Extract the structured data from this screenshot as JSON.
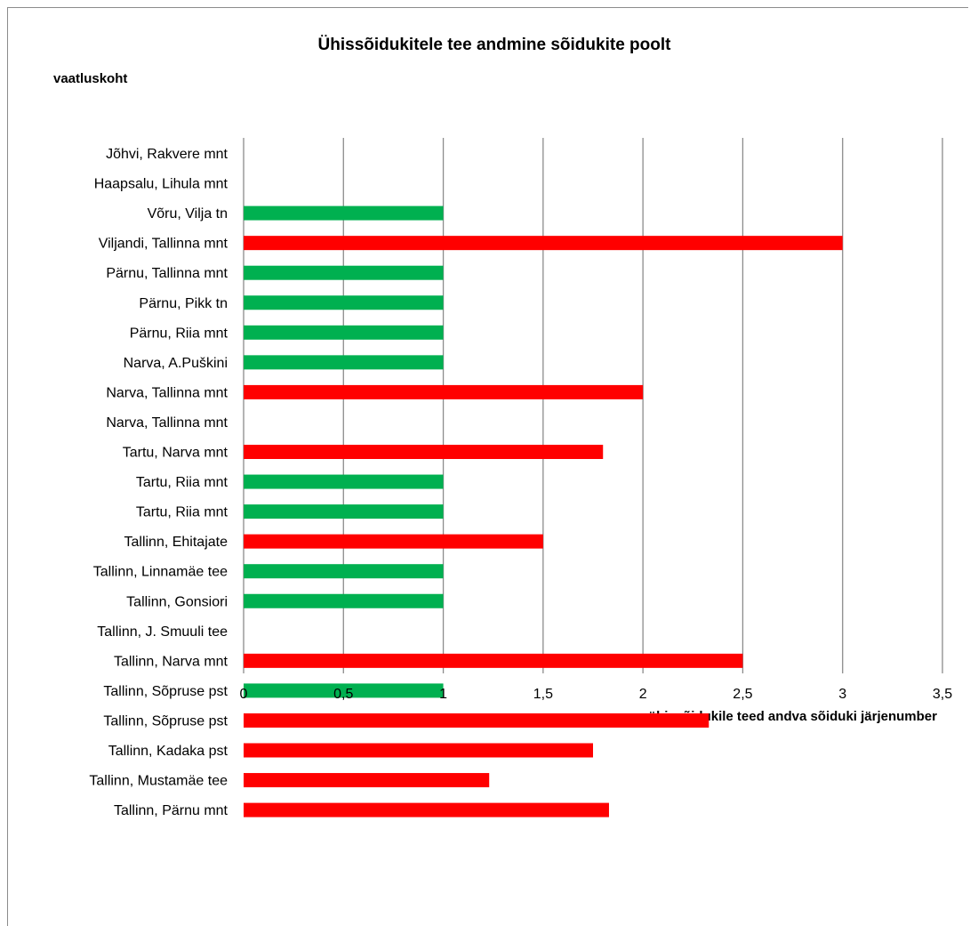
{
  "chart_data": {
    "type": "bar",
    "orientation": "horizontal",
    "title": "Ühissõidukitele tee andmine sõidukite  poolt",
    "ylabel": "vaatluskoht",
    "xlabel": "ühissõidukile teed andva sõiduki järjenumber",
    "xlim": [
      0,
      3.5
    ],
    "xticks": [
      "0",
      "0,5",
      "1",
      "1,5",
      "2",
      "2,5",
      "3",
      "3,5"
    ],
    "xtick_values": [
      0,
      0.5,
      1,
      1.5,
      2,
      2.5,
      3,
      3.5
    ],
    "grid": "vertical",
    "legend": "none",
    "colors": {
      "green": "#00b050",
      "red": "#ff0000"
    },
    "categories": [
      "Jõhvi, Rakvere mnt",
      "Haapsalu, Lihula mnt",
      "Võru, Vilja tn",
      "Viljandi, Tallinna mnt",
      "Pärnu, Tallinna mnt",
      "Pärnu, Pikk tn",
      "Pärnu, Riia mnt",
      "Narva, A.Puškini",
      "Narva, Tallinna mnt",
      "Narva, Tallinna mnt",
      "Tartu, Narva mnt",
      "Tartu, Riia mnt",
      "Tartu, Riia mnt",
      "Tallinn, Ehitajate",
      "Tallinn, Linnamäe tee",
      "Tallinn, Gonsiori",
      "Tallinn, J. Smuuli tee",
      "Tallinn, Narva mnt",
      "Tallinn, Sõpruse pst",
      "Tallinn, Sõpruse pst",
      "Tallinn, Kadaka pst",
      "Tallinn, Mustamäe tee",
      "Tallinn, Pärnu mnt"
    ],
    "values": [
      0,
      0,
      1,
      3,
      1,
      1,
      1,
      1,
      2,
      0,
      1.8,
      1,
      1,
      1.5,
      1,
      1,
      0,
      2.5,
      1,
      2.33,
      1.75,
      1.23,
      1.83
    ],
    "bar_colors": [
      "green",
      "green",
      "green",
      "red",
      "green",
      "green",
      "green",
      "green",
      "red",
      "green",
      "red",
      "green",
      "green",
      "red",
      "green",
      "green",
      "green",
      "red",
      "green",
      "red",
      "red",
      "red",
      "red"
    ]
  }
}
